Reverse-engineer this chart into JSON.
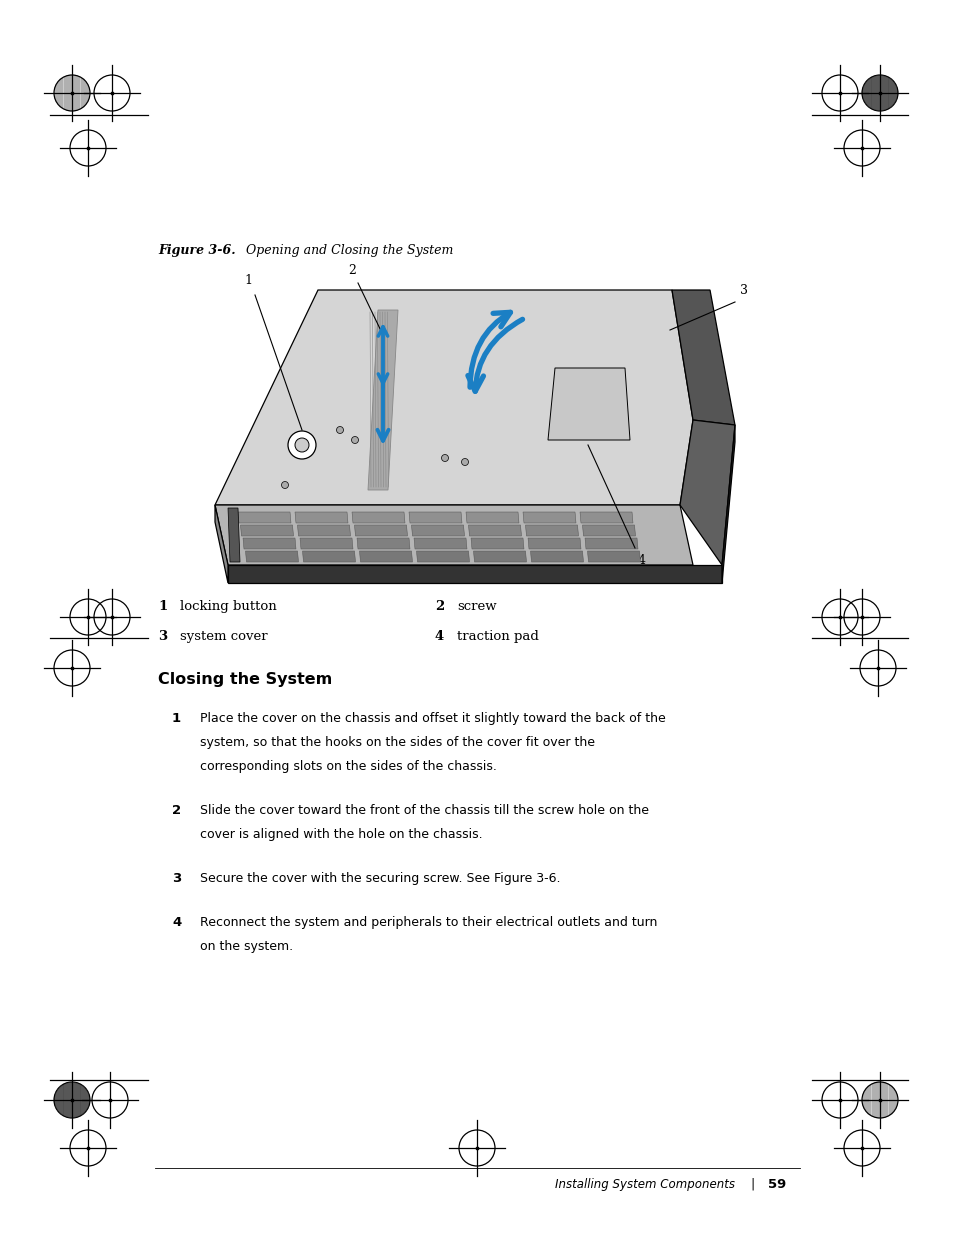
{
  "figure_caption_bold": "Figure 3-6.",
  "figure_caption_rest": "    Opening and Closing the System",
  "section_title": "Closing the System",
  "legend": [
    {
      "num": "1",
      "label": "locking button",
      "col": 0
    },
    {
      "num": "2",
      "label": "screw",
      "col": 1
    },
    {
      "num": "3",
      "label": "system cover",
      "col": 0
    },
    {
      "num": "4",
      "label": "traction pad",
      "col": 1
    }
  ],
  "steps": [
    {
      "num": "1",
      "text": "Place the cover on the chassis and offset it slightly toward the back of the\nsystem, so that the hooks on the sides of the cover fit over the\ncorresponding slots on the sides of the chassis."
    },
    {
      "num": "2",
      "text": "Slide the cover toward the front of the chassis till the screw hole on the\ncover is aligned with the hole on the chassis."
    },
    {
      "num": "3",
      "text": "Secure the cover with the securing screw. See Figure 3-6."
    },
    {
      "num": "4",
      "text": "Reconnect the system and peripherals to their electrical outlets and turn\non the system."
    }
  ],
  "footer_left": "Installing System Components",
  "footer_page": "59",
  "bg_color": "#ffffff",
  "blue": "#1b7fc4"
}
